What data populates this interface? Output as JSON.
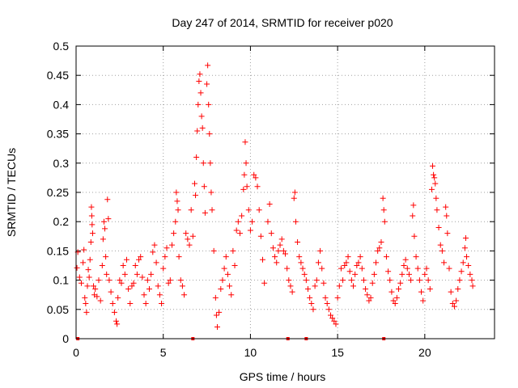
{
  "chart_data": {
    "type": "scatter",
    "title": "Day 247 of 2014, SRMTID for receiver p020",
    "xlabel": "GPS time / hours",
    "ylabel": "SRMTID / TECUs",
    "xlim": [
      0,
      24
    ],
    "ylim": [
      0,
      0.5
    ],
    "xticks": [
      0,
      5,
      10,
      15,
      20
    ],
    "yticks": [
      0,
      0.05,
      0.1,
      0.15,
      0.2,
      0.25,
      0.3,
      0.35,
      0.4,
      0.45,
      0.5
    ],
    "ytick_labels": [
      "0",
      "0.05",
      "0.1",
      "0.15",
      "0.2",
      "0.25",
      "0.3",
      "0.35",
      "0.4",
      "0.45",
      "0.5"
    ],
    "grid": true,
    "marker": "+",
    "color": "#ff0000",
    "series": [
      {
        "name": "p020",
        "points": [
          [
            0.05,
            0.121
          ],
          [
            0.1,
            0.148
          ],
          [
            0.2,
            0.105
          ],
          [
            0.3,
            0.095
          ],
          [
            0.4,
            0.13
          ],
          [
            0.45,
            0.152
          ],
          [
            0.5,
            0.07
          ],
          [
            0.55,
            0.06
          ],
          [
            0.6,
            0.045
          ],
          [
            0.65,
            0.09
          ],
          [
            0.7,
            0.118
          ],
          [
            0.75,
            0.105
          ],
          [
            0.8,
            0.135
          ],
          [
            0.85,
            0.165
          ],
          [
            0.88,
            0.225
          ],
          [
            0.9,
            0.21
          ],
          [
            0.92,
            0.195
          ],
          [
            0.95,
            0.18
          ],
          [
            1.0,
            0.09
          ],
          [
            1.05,
            0.075
          ],
          [
            1.1,
            0.085
          ],
          [
            1.2,
            0.072
          ],
          [
            1.3,
            0.1
          ],
          [
            1.4,
            0.065
          ],
          [
            1.5,
            0.125
          ],
          [
            1.55,
            0.17
          ],
          [
            1.6,
            0.2
          ],
          [
            1.65,
            0.188
          ],
          [
            1.7,
            0.14
          ],
          [
            1.75,
            0.11
          ],
          [
            1.8,
            0.238
          ],
          [
            1.85,
            0.205
          ],
          [
            1.9,
            0.1
          ],
          [
            2.0,
            0.08
          ],
          [
            2.1,
            0.06
          ],
          [
            2.2,
            0.045
          ],
          [
            2.3,
            0.03
          ],
          [
            2.35,
            0.025
          ],
          [
            2.4,
            0.07
          ],
          [
            2.5,
            0.1
          ],
          [
            2.6,
            0.095
          ],
          [
            2.7,
            0.125
          ],
          [
            2.8,
            0.11
          ],
          [
            2.9,
            0.135
          ],
          [
            3.0,
            0.085
          ],
          [
            3.1,
            0.06
          ],
          [
            3.2,
            0.09
          ],
          [
            3.3,
            0.095
          ],
          [
            3.4,
            0.125
          ],
          [
            3.5,
            0.11
          ],
          [
            3.6,
            0.135
          ],
          [
            3.7,
            0.14
          ],
          [
            3.8,
            0.105
          ],
          [
            3.9,
            0.075
          ],
          [
            4.0,
            0.06
          ],
          [
            4.1,
            0.1
          ],
          [
            4.2,
            0.085
          ],
          [
            4.3,
            0.11
          ],
          [
            4.4,
            0.148
          ],
          [
            4.5,
            0.16
          ],
          [
            4.6,
            0.13
          ],
          [
            4.7,
            0.09
          ],
          [
            4.8,
            0.075
          ],
          [
            4.9,
            0.06
          ],
          [
            5.0,
            0.12
          ],
          [
            5.1,
            0.14
          ],
          [
            5.2,
            0.155
          ],
          [
            5.3,
            0.095
          ],
          [
            5.4,
            0.1
          ],
          [
            5.5,
            0.16
          ],
          [
            5.6,
            0.18
          ],
          [
            5.7,
            0.2
          ],
          [
            5.75,
            0.25
          ],
          [
            5.8,
            0.235
          ],
          [
            5.85,
            0.22
          ],
          [
            5.9,
            0.14
          ],
          [
            6.0,
            0.1
          ],
          [
            6.1,
            0.09
          ],
          [
            6.2,
            0.075
          ],
          [
            6.3,
            0.18
          ],
          [
            6.4,
            0.17
          ],
          [
            6.5,
            0.16
          ],
          [
            6.6,
            0.22
          ],
          [
            6.7,
            0.175
          ],
          [
            6.8,
            0.265
          ],
          [
            6.85,
            0.245
          ],
          [
            6.9,
            0.31
          ],
          [
            6.95,
            0.355
          ],
          [
            7.0,
            0.4
          ],
          [
            7.05,
            0.44
          ],
          [
            7.1,
            0.452
          ],
          [
            7.15,
            0.42
          ],
          [
            7.2,
            0.38
          ],
          [
            7.25,
            0.36
          ],
          [
            7.3,
            0.3
          ],
          [
            7.35,
            0.26
          ],
          [
            7.4,
            0.215
          ],
          [
            7.5,
            0.435
          ],
          [
            7.55,
            0.467
          ],
          [
            7.6,
            0.4
          ],
          [
            7.65,
            0.35
          ],
          [
            7.7,
            0.3
          ],
          [
            7.75,
            0.25
          ],
          [
            7.8,
            0.22
          ],
          [
            7.9,
            0.15
          ],
          [
            8.0,
            0.07
          ],
          [
            8.05,
            0.04
          ],
          [
            8.1,
            0.02
          ],
          [
            8.2,
            0.045
          ],
          [
            8.3,
            0.085
          ],
          [
            8.4,
            0.1
          ],
          [
            8.5,
            0.12
          ],
          [
            8.6,
            0.14
          ],
          [
            8.7,
            0.11
          ],
          [
            8.8,
            0.09
          ],
          [
            8.9,
            0.075
          ],
          [
            9.0,
            0.15
          ],
          [
            9.1,
            0.125
          ],
          [
            9.2,
            0.185
          ],
          [
            9.3,
            0.2
          ],
          [
            9.4,
            0.18
          ],
          [
            9.5,
            0.21
          ],
          [
            9.6,
            0.255
          ],
          [
            9.65,
            0.28
          ],
          [
            9.7,
            0.336
          ],
          [
            9.75,
            0.3
          ],
          [
            9.8,
            0.26
          ],
          [
            9.9,
            0.22
          ],
          [
            10.0,
            0.185
          ],
          [
            10.1,
            0.2
          ],
          [
            10.2,
            0.28
          ],
          [
            10.3,
            0.275
          ],
          [
            10.4,
            0.26
          ],
          [
            10.5,
            0.22
          ],
          [
            10.6,
            0.175
          ],
          [
            10.7,
            0.135
          ],
          [
            10.8,
            0.095
          ],
          [
            11.0,
            0.2
          ],
          [
            11.1,
            0.23
          ],
          [
            11.2,
            0.18
          ],
          [
            11.3,
            0.155
          ],
          [
            11.4,
            0.14
          ],
          [
            11.5,
            0.13
          ],
          [
            11.6,
            0.15
          ],
          [
            11.7,
            0.16
          ],
          [
            11.8,
            0.17
          ],
          [
            11.9,
            0.15
          ],
          [
            12.0,
            0.145
          ],
          [
            12.1,
            0.12
          ],
          [
            12.2,
            0.1
          ],
          [
            12.3,
            0.09
          ],
          [
            12.4,
            0.08
          ],
          [
            12.5,
            0.24
          ],
          [
            12.55,
            0.25
          ],
          [
            12.6,
            0.2
          ],
          [
            12.7,
            0.165
          ],
          [
            12.8,
            0.14
          ],
          [
            12.9,
            0.13
          ],
          [
            13.0,
            0.12
          ],
          [
            13.1,
            0.11
          ],
          [
            13.2,
            0.1
          ],
          [
            13.3,
            0.085
          ],
          [
            13.4,
            0.07
          ],
          [
            13.5,
            0.06
          ],
          [
            13.6,
            0.05
          ],
          [
            13.7,
            0.09
          ],
          [
            13.8,
            0.1
          ],
          [
            13.9,
            0.13
          ],
          [
            14.0,
            0.15
          ],
          [
            14.1,
            0.12
          ],
          [
            14.2,
            0.095
          ],
          [
            14.3,
            0.07
          ],
          [
            14.4,
            0.06
          ],
          [
            14.5,
            0.05
          ],
          [
            14.6,
            0.04
          ],
          [
            14.7,
            0.035
          ],
          [
            14.8,
            0.03
          ],
          [
            14.9,
            0.025
          ],
          [
            15.0,
            0.07
          ],
          [
            15.1,
            0.09
          ],
          [
            15.2,
            0.12
          ],
          [
            15.3,
            0.1
          ],
          [
            15.4,
            0.125
          ],
          [
            15.5,
            0.13
          ],
          [
            15.6,
            0.14
          ],
          [
            15.7,
            0.115
          ],
          [
            15.8,
            0.1
          ],
          [
            15.9,
            0.09
          ],
          [
            16.0,
            0.11
          ],
          [
            16.1,
            0.125
          ],
          [
            16.2,
            0.13
          ],
          [
            16.3,
            0.14
          ],
          [
            16.4,
            0.12
          ],
          [
            16.5,
            0.1
          ],
          [
            16.6,
            0.085
          ],
          [
            16.7,
            0.075
          ],
          [
            16.8,
            0.065
          ],
          [
            16.9,
            0.07
          ],
          [
            17.0,
            0.095
          ],
          [
            17.1,
            0.11
          ],
          [
            17.2,
            0.13
          ],
          [
            17.3,
            0.15
          ],
          [
            17.4,
            0.155
          ],
          [
            17.5,
            0.165
          ],
          [
            17.6,
            0.24
          ],
          [
            17.65,
            0.22
          ],
          [
            17.7,
            0.2
          ],
          [
            17.8,
            0.14
          ],
          [
            17.9,
            0.115
          ],
          [
            18.0,
            0.1
          ],
          [
            18.1,
            0.08
          ],
          [
            18.2,
            0.065
          ],
          [
            18.3,
            0.06
          ],
          [
            18.4,
            0.07
          ],
          [
            18.5,
            0.085
          ],
          [
            18.6,
            0.095
          ],
          [
            18.7,
            0.11
          ],
          [
            18.8,
            0.125
          ],
          [
            18.9,
            0.135
          ],
          [
            19.0,
            0.12
          ],
          [
            19.1,
            0.11
          ],
          [
            19.2,
            0.1
          ],
          [
            19.3,
            0.21
          ],
          [
            19.35,
            0.228
          ],
          [
            19.4,
            0.175
          ],
          [
            19.5,
            0.14
          ],
          [
            19.6,
            0.12
          ],
          [
            19.7,
            0.1
          ],
          [
            19.8,
            0.08
          ],
          [
            19.9,
            0.065
          ],
          [
            20.0,
            0.11
          ],
          [
            20.1,
            0.12
          ],
          [
            20.2,
            0.1
          ],
          [
            20.3,
            0.085
          ],
          [
            20.4,
            0.255
          ],
          [
            20.45,
            0.295
          ],
          [
            20.5,
            0.28
          ],
          [
            20.55,
            0.275
          ],
          [
            20.6,
            0.265
          ],
          [
            20.65,
            0.24
          ],
          [
            20.7,
            0.22
          ],
          [
            20.8,
            0.19
          ],
          [
            20.9,
            0.16
          ],
          [
            21.0,
            0.15
          ],
          [
            21.1,
            0.13
          ],
          [
            21.2,
            0.225
          ],
          [
            21.25,
            0.21
          ],
          [
            21.3,
            0.18
          ],
          [
            21.4,
            0.12
          ],
          [
            21.5,
            0.08
          ],
          [
            21.6,
            0.06
          ],
          [
            21.7,
            0.055
          ],
          [
            21.8,
            0.065
          ],
          [
            21.9,
            0.085
          ],
          [
            22.0,
            0.1
          ],
          [
            22.1,
            0.115
          ],
          [
            22.2,
            0.13
          ],
          [
            22.3,
            0.155
          ],
          [
            22.35,
            0.172
          ],
          [
            22.4,
            0.14
          ],
          [
            22.5,
            0.125
          ],
          [
            22.6,
            0.11
          ],
          [
            22.7,
            0.1
          ],
          [
            22.75,
            0.09
          ]
        ]
      }
    ],
    "zero_points_x": [
      0.1,
      6.7,
      12.15,
      13.2,
      17.65
    ]
  }
}
